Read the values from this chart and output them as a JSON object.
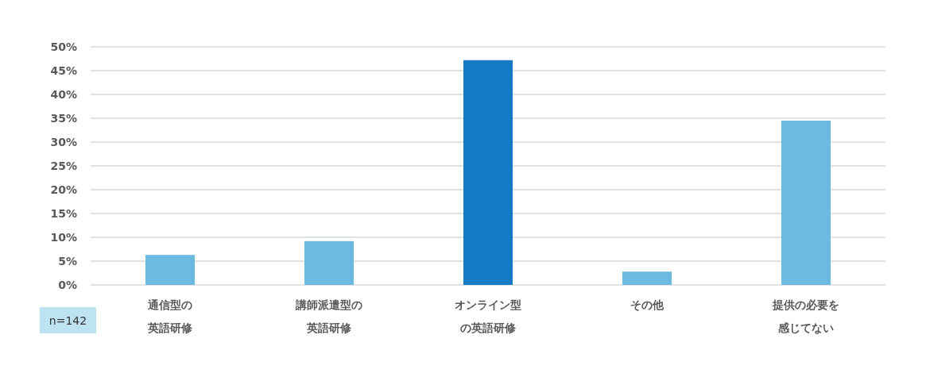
{
  "chart_data": {
    "type": "bar",
    "categories": [
      "通信型の英語研修",
      "講師派遣型の英語研修",
      "オンライン型の英語研修",
      "その他",
      "提供の必要を感じてない"
    ],
    "values": [
      6.3,
      9.2,
      47.2,
      2.8,
      34.5
    ],
    "colors": [
      "#6bbbe0",
      "#6bbbe0",
      "#157bc5",
      "#6bbbe0",
      "#6bbbe0"
    ],
    "ylim": [
      0,
      50
    ],
    "yticks": [
      {
        "value": 0,
        "label": "0%"
      },
      {
        "value": 5,
        "label": "5%"
      },
      {
        "value": 10,
        "label": "10%"
      },
      {
        "value": 15,
        "label": "15%"
      },
      {
        "value": 20,
        "label": "20%"
      },
      {
        "value": 25,
        "label": "25%"
      },
      {
        "value": 30,
        "label": "30%"
      },
      {
        "value": 35,
        "label": "35%"
      },
      {
        "value": 40,
        "label": "40%"
      },
      {
        "value": 45,
        "label": "45%"
      },
      {
        "value": 50,
        "label": "50%"
      }
    ],
    "grid": "y",
    "annotations": [
      "n=142"
    ]
  }
}
